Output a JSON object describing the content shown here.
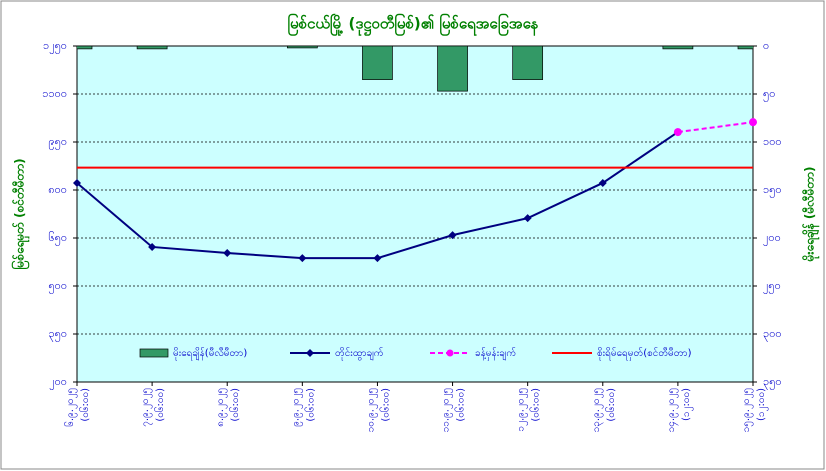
{
  "chart_data": {
    "type": "combo",
    "title": "မြစ်ငယ်မြို့ (ဒုဋ္ဌဝတီမြစ်)၏ မြစ်ရေအခြေအနေ",
    "ylabel": "မြစ်ရေမှတ် (စင်တီမီတာ)",
    "y2label": "မိုးရေချိန် (မီလီမီတာ)",
    "categories": [
      [
        "၆.၉.၂၀၂၅",
        "(၀၆:၀၀)"
      ],
      [
        "၇.၉.၂၀၂၅",
        "(၀၆:၀၀)"
      ],
      [
        "၈.၉.၂၀၂၅",
        "(၀၆:၀၀)"
      ],
      [
        "၉.၉.၂၀၂၅",
        "(၀၆:၀၀)"
      ],
      [
        "၁၀.၉.၂၀၂၅",
        "(၀၆:၀၀)"
      ],
      [
        "၁၁.၉.၂၀၂၅",
        "(၀၆:၀၀)"
      ],
      [
        "၁၂.၉.၂၀၂၅",
        "(၀၆:၀၀)"
      ],
      [
        "၁၃.၉.၂၀၂၅",
        "(၀၆:၀၀)"
      ],
      [
        "၁၄.၉.၂၀၂၅",
        "(၁၂:၀၀)"
      ],
      [
        "၁၅.၉.၂၀၂၅",
        "(၁၂:၀၀)"
      ]
    ],
    "series": [
      {
        "name": "မိုးရေချိန်(မီလီမီတာ)",
        "type": "bar",
        "axis": "y2",
        "color": "#339966",
        "values": [
          3,
          3,
          0,
          2,
          35,
          47,
          35,
          0,
          3,
          3
        ]
      },
      {
        "name": "တိုင်းထွာချက်",
        "type": "line",
        "color": "#000080",
        "marker": "diamond",
        "values": [
          822,
          622,
          603,
          587,
          587,
          659,
          712,
          822,
          981,
          null
        ]
      },
      {
        "name": "ခန့်မှန်းချက်",
        "type": "line",
        "color": "#ff00ff",
        "marker": "circle",
        "dashed": true,
        "values": [
          null,
          null,
          null,
          null,
          null,
          null,
          null,
          null,
          981,
          1012
        ]
      }
    ],
    "danger_level": {
      "name": "စိုးရိမ်ရေမှတ်(စင်တီမီတာ)",
      "value": 870,
      "color": "#ff0000"
    },
    "ylim": [
      200,
      1250
    ],
    "yticks": [
      {
        "value": 200,
        "label": "၂၀၀"
      },
      {
        "value": 350,
        "label": "၃၅၀"
      },
      {
        "value": 500,
        "label": "၅၀၀"
      },
      {
        "value": 650,
        "label": "၆၅၀"
      },
      {
        "value": 800,
        "label": "၈၀၀"
      },
      {
        "value": 950,
        "label": "၉၅၀"
      },
      {
        "value": 1100,
        "label": "၁၁၀၀"
      },
      {
        "value": 1250,
        "label": "၁၂၅၀"
      }
    ],
    "y2lim": [
      350,
      0
    ],
    "y2ticks": [
      {
        "value": 0,
        "label": "၀"
      },
      {
        "value": 50,
        "label": "၅၀"
      },
      {
        "value": 100,
        "label": "၁၀၀"
      },
      {
        "value": 150,
        "label": "၁၅၀"
      },
      {
        "value": 200,
        "label": "၂၀၀"
      },
      {
        "value": 250,
        "label": "၂၅၀"
      },
      {
        "value": 300,
        "label": "၃၀၀"
      },
      {
        "value": 350,
        "label": "၃၅၀"
      }
    ],
    "grid": true,
    "plot_background": "#ccffff",
    "legend": "bottom"
  }
}
